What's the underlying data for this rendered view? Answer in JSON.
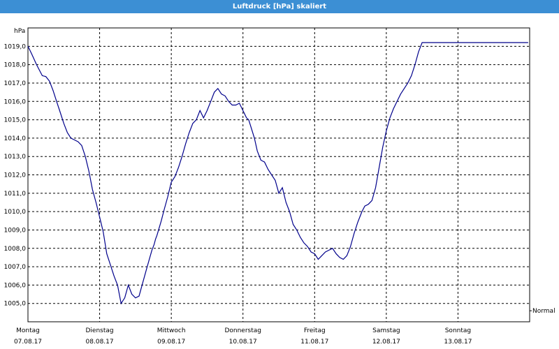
{
  "window": {
    "title": "Luftdruck [hPa] skaliert"
  },
  "chart_data": {
    "type": "line",
    "title": "Luftdruck [hPa] skaliert",
    "ylabel": "hPa",
    "ylim": [
      1004.0,
      1020.0
    ],
    "ytick_values": [
      1005,
      1006,
      1007,
      1008,
      1009,
      1010,
      1011,
      1012,
      1013,
      1014,
      1015,
      1016,
      1017,
      1018,
      1019
    ],
    "ytick_labels": [
      "1005,0",
      "1006,0",
      "1007,0",
      "1008,0",
      "1009,0",
      "1010,0",
      "1011,0",
      "1012,0",
      "1013,0",
      "1014,0",
      "1015,0",
      "1016,0",
      "1017,0",
      "1018,0",
      "1019,0"
    ],
    "x_days": [
      {
        "day": "Montag",
        "date": "07.08.17"
      },
      {
        "day": "Dienstag",
        "date": "08.08.17"
      },
      {
        "day": "Mittwoch",
        "date": "09.08.17"
      },
      {
        "day": "Donnerstag",
        "date": "10.08.17"
      },
      {
        "day": "Freitag",
        "date": "11.08.17"
      },
      {
        "day": "Samstag",
        "date": "12.08.17"
      },
      {
        "day": "Sonntag",
        "date": "13.08.17"
      }
    ],
    "grid": true,
    "series_color": "#00008b",
    "reference_line": {
      "label": "Normal"
    },
    "series": [
      {
        "x": [
          0,
          0.05,
          0.12,
          0.2,
          0.25,
          0.3,
          0.35,
          0.4,
          0.45,
          0.5,
          0.55,
          0.6,
          0.65,
          0.7,
          0.75,
          0.8,
          0.85,
          0.9,
          0.95,
          1.0,
          1.05,
          1.1,
          1.15,
          1.2,
          1.25,
          1.3,
          1.35,
          1.4,
          1.45,
          1.5,
          1.55,
          1.6,
          1.65,
          1.7,
          1.73,
          1.76,
          1.78,
          1.8,
          1.83,
          1.86,
          1.9,
          1.95,
          2.0,
          2.05,
          2.1,
          2.15,
          2.2,
          2.25,
          2.3,
          2.35,
          2.4,
          2.45,
          2.5,
          2.55,
          2.6,
          2.65,
          2.7,
          2.75,
          2.8,
          2.85,
          2.9,
          2.95,
          3.0,
          3.05,
          3.08,
          3.12,
          3.16,
          3.2,
          3.25,
          3.3,
          3.35,
          3.4,
          3.45,
          3.5,
          3.55,
          3.6,
          3.65,
          3.7,
          3.75,
          3.8,
          3.85,
          3.9,
          3.95,
          4.0,
          4.05,
          4.1,
          4.15,
          4.2,
          4.25,
          4.3,
          4.35,
          4.4,
          4.45,
          4.5,
          4.55,
          4.6,
          4.63,
          4.66,
          4.7,
          4.75,
          4.8,
          4.85,
          4.9,
          4.95,
          5.0,
          5.05,
          5.1,
          5.15,
          5.2,
          5.25,
          5.3,
          5.35,
          5.4,
          5.45,
          5.5,
          5.55,
          5.6,
          5.65,
          5.7,
          5.75,
          5.8,
          5.85,
          5.9,
          5.95,
          6.0,
          6.05,
          6.1,
          6.15,
          6.2,
          6.25,
          6.3,
          6.35,
          6.4,
          6.45,
          6.5,
          6.55,
          6.6,
          6.65,
          6.7,
          6.75,
          6.8,
          6.85,
          6.9,
          6.95,
          6.98
        ],
        "y": [
          1019.0,
          1018.6,
          1018.0,
          1017.4,
          1017.35,
          1017.1,
          1016.6,
          1016.0,
          1015.4,
          1014.8,
          1014.3,
          1014.0,
          1013.9,
          1013.8,
          1013.6,
          1013.0,
          1012.2,
          1011.2,
          1010.5,
          1009.7,
          1008.9,
          1007.7,
          1007.1,
          1006.5,
          1006.0,
          1005.0,
          1005.3,
          1006.0,
          1005.5,
          1005.3,
          1005.4,
          1006.1,
          1006.8,
          1007.5,
          1007.9,
          1008.2,
          1008.5,
          1008.7,
          1009.1,
          1009.5,
          1010.1,
          1010.8,
          1011.6,
          1011.9,
          1012.4,
          1013.0,
          1013.7,
          1014.3,
          1014.8,
          1015.0,
          1015.5,
          1015.1,
          1015.5,
          1016.0,
          1016.5,
          1016.7,
          1016.4,
          1016.3,
          1016.0,
          1015.8,
          1015.8,
          1015.9,
          1015.5,
          1015.1,
          1015.0,
          1014.5,
          1014.0,
          1013.3,
          1012.8,
          1012.7,
          1012.3,
          1012.0,
          1011.7,
          1011.0,
          1011.3,
          1010.5,
          1010.0,
          1009.3,
          1009.0,
          1008.6,
          1008.3,
          1008.1,
          1007.8,
          1007.7,
          1007.4,
          1007.6,
          1007.8,
          1007.9,
          1008.0,
          1007.7,
          1007.5,
          1007.4,
          1007.6,
          1008.1,
          1008.8,
          1009.4,
          1009.7,
          1010.0,
          1010.3,
          1010.4,
          1010.6,
          1011.3,
          1012.4,
          1013.5,
          1014.4,
          1015.1,
          1015.6,
          1016.0,
          1016.4,
          1016.7,
          1017.0,
          1017.4,
          1018.0,
          1018.7,
          1019.2,
          1019.2,
          1019.2,
          1019.2,
          1019.2,
          1019.2,
          1019.2,
          1019.2,
          1019.2,
          1019.2,
          1019.2,
          1019.2,
          1019.2,
          1019.2,
          1019.2,
          1019.2,
          1019.2,
          1019.2,
          1019.2,
          1019.2,
          1019.2,
          1019.2,
          1019.2,
          1019.2,
          1019.2,
          1019.2,
          1019.2,
          1019.2,
          1019.2,
          1019.2,
          1019.2
        ]
      }
    ]
  }
}
